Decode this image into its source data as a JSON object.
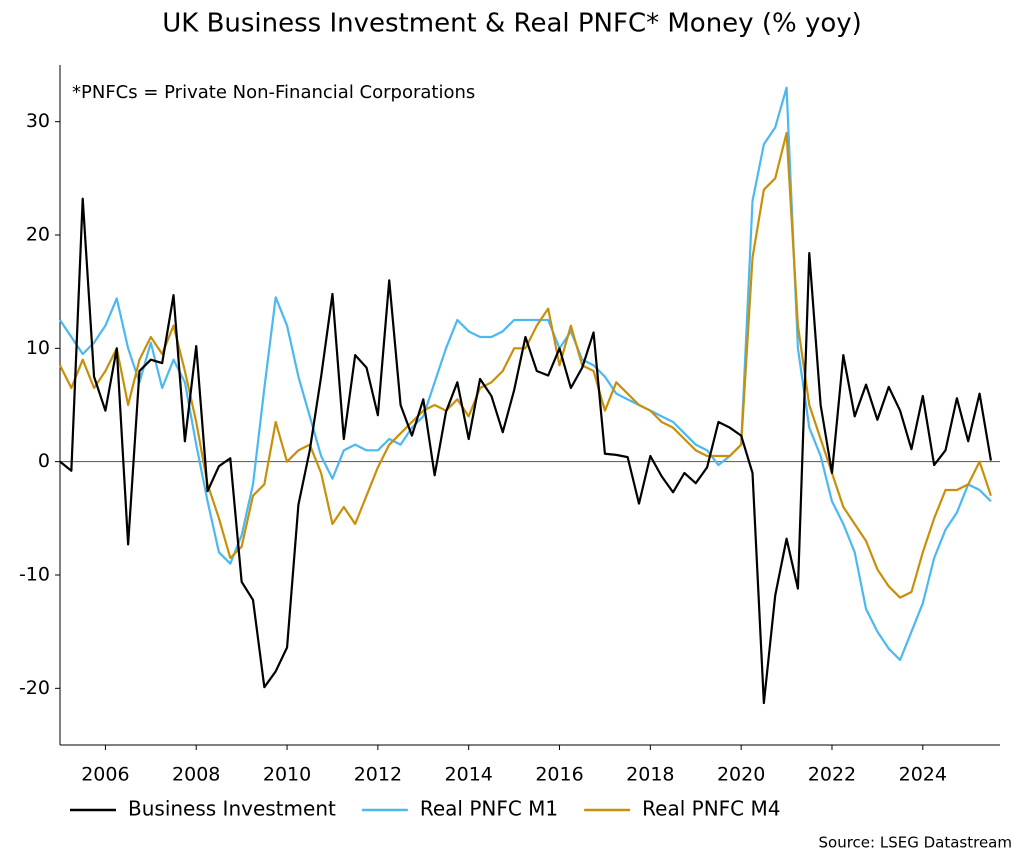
{
  "chart_data": {
    "type": "line",
    "title": "UK Business Investment & Real PNFC* Money (% yoy)",
    "annotation": "*PNFCs = Private Non-Financial Corporations",
    "source": "Source: LSEG Datastream",
    "xlim": [
      2005,
      2025.7
    ],
    "xticks": [
      2006,
      2008,
      2010,
      2012,
      2014,
      2016,
      2018,
      2020,
      2022,
      2024
    ],
    "ylim": [
      -25,
      35
    ],
    "yticks": [
      -20,
      -10,
      0,
      10,
      20,
      30
    ],
    "zero_line": true,
    "legend": "bottom",
    "x": [
      2005,
      2005.25,
      2005.5,
      2005.75,
      2006,
      2006.25,
      2006.5,
      2006.75,
      2007,
      2007.25,
      2007.5,
      2007.75,
      2008,
      2008.25,
      2008.5,
      2008.75,
      2009,
      2009.25,
      2009.5,
      2009.75,
      2010,
      2010.25,
      2010.5,
      2010.75,
      2011,
      2011.25,
      2011.5,
      2011.75,
      2012,
      2012.25,
      2012.5,
      2012.75,
      2013,
      2013.25,
      2013.5,
      2013.75,
      2014,
      2014.25,
      2014.5,
      2014.75,
      2015,
      2015.25,
      2015.5,
      2015.75,
      2016,
      2016.25,
      2016.5,
      2016.75,
      2017,
      2017.25,
      2017.5,
      2017.75,
      2018,
      2018.25,
      2018.5,
      2018.75,
      2019,
      2019.25,
      2019.5,
      2019.75,
      2020,
      2020.25,
      2020.5,
      2020.75,
      2021,
      2021.25,
      2021.5,
      2021.75,
      2022,
      2022.25,
      2022.5,
      2022.75,
      2023,
      2023.25,
      2023.5,
      2023.75,
      2024,
      2024.25,
      2024.5,
      2024.75,
      2025,
      2025.25,
      2025.5
    ],
    "series": [
      {
        "name": "Business Investment",
        "color": "#000000",
        "values": [
          0,
          -0.8,
          23.2,
          7.5,
          4.5,
          10,
          -7.3,
          8,
          9,
          8.7,
          14.7,
          1.8,
          10.2,
          -2.6,
          -0.4,
          0.3,
          -10.6,
          -12.2,
          -19.9,
          -18.5,
          -16.4,
          -3.8,
          1,
          7.5,
          14.8,
          2,
          9.4,
          8.3,
          4.1,
          16,
          5,
          2.3,
          5.5,
          -1.2,
          4.4,
          7,
          2,
          7.3,
          5.8,
          2.6,
          6.3,
          11,
          8,
          7.6,
          10,
          6.5,
          8.3,
          11.4,
          0.7,
          0.6,
          0.4,
          -3.7,
          0.5,
          -1.3,
          -2.7,
          -1,
          -1.9,
          -0.5,
          3.5,
          3,
          2.3,
          -1,
          -21.3,
          -11.8,
          -6.8,
          -11.2,
          18.4,
          5,
          -1,
          9.4,
          4,
          6.8,
          3.7,
          6.6,
          4.5,
          1.1,
          5.8,
          -0.3,
          1,
          5.6,
          1.8,
          6,
          0.1
        ]
      },
      {
        "name": "Real PNFC M1",
        "color": "#4cb8f0",
        "values": [
          12.5,
          11,
          9.5,
          10.5,
          12,
          14.4,
          10,
          7,
          10.5,
          6.5,
          9,
          7,
          1.5,
          -3.5,
          -8,
          -9,
          -6.5,
          -2,
          6.5,
          14.5,
          12,
          7.5,
          4,
          0.5,
          -1.5,
          1,
          1.5,
          1,
          1,
          2,
          1.5,
          3,
          4,
          7,
          10,
          12.5,
          11.5,
          11,
          11,
          11.5,
          12.5,
          12.5,
          12.5,
          12.5,
          10,
          11.5,
          9,
          8.5,
          7.5,
          6,
          5.5,
          5,
          4.5,
          4,
          3.5,
          2.5,
          1.5,
          1,
          -0.3,
          0.5,
          1.5,
          23,
          28,
          29.5,
          33,
          10,
          3,
          0.5,
          -3.5,
          -5.5,
          -8,
          -13,
          -15,
          -16.5,
          -17.5,
          -15,
          -12.5,
          -8.5,
          -6,
          -4.5,
          -2,
          -2.5,
          -3.5
        ]
      },
      {
        "name": "Real PNFC M4",
        "color": "#c8900a",
        "values": [
          8.5,
          6.5,
          9,
          6.5,
          8,
          10,
          5,
          9,
          11,
          9.5,
          12,
          8,
          3.5,
          -2,
          -5,
          -8.5,
          -7.5,
          -3,
          -2,
          3.5,
          0,
          1,
          1.5,
          -1,
          -5.5,
          -4,
          -5.5,
          -3,
          -0.5,
          1.5,
          2.5,
          3.5,
          4.5,
          5,
          4.5,
          5.5,
          4,
          6.5,
          7,
          8,
          10,
          10,
          12,
          13.5,
          8.5,
          12,
          8.5,
          8,
          4.5,
          7,
          6,
          5,
          4.5,
          3.5,
          3,
          2,
          1,
          0.5,
          0.5,
          0.5,
          1.5,
          18,
          24,
          25,
          29,
          12,
          5,
          2,
          -1,
          -4,
          -5.5,
          -7,
          -9.5,
          -11,
          -12,
          -11.5,
          -8,
          -5,
          -2.5,
          -2.5,
          -2,
          0,
          -3
        ]
      }
    ]
  }
}
